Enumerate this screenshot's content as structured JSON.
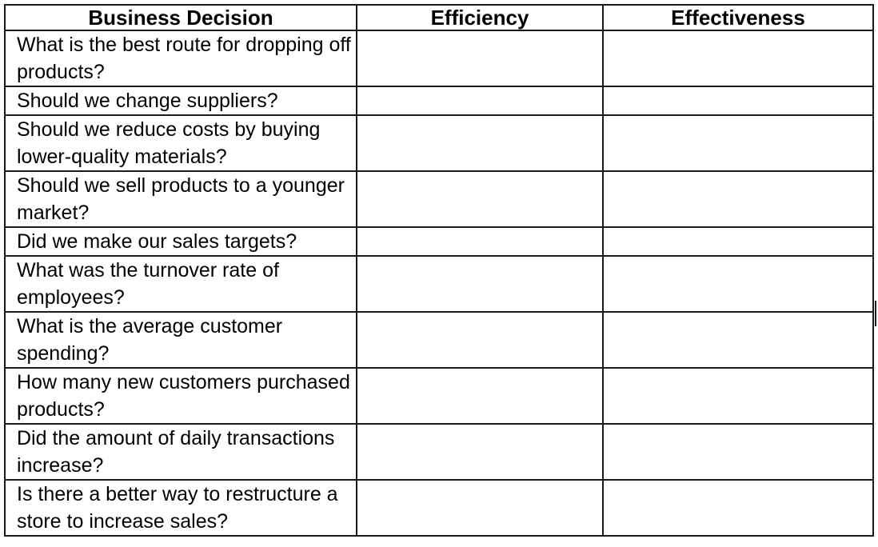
{
  "table": {
    "headers": {
      "decision": "Business Decision",
      "efficiency": "Efficiency",
      "effectiveness": "Effectiveness"
    },
    "rows": [
      {
        "decision": "What is the best route for dropping off products?",
        "efficiency": "",
        "effectiveness": ""
      },
      {
        "decision": "Should we change suppliers?",
        "efficiency": "",
        "effectiveness": ""
      },
      {
        "decision": "Should we reduce costs by buying lower-quality materials?",
        "efficiency": "",
        "effectiveness": ""
      },
      {
        "decision": "Should we sell products to a younger market?",
        "efficiency": "",
        "effectiveness": ""
      },
      {
        "decision": "Did we make our sales targets?",
        "efficiency": "",
        "effectiveness": ""
      },
      {
        "decision": "What was the turnover rate of employees?",
        "efficiency": "",
        "effectiveness": ""
      },
      {
        "decision": "What is the average customer spending?",
        "efficiency": "",
        "effectiveness": ""
      },
      {
        "decision": "How many new customers purchased products?",
        "efficiency": "",
        "effectiveness": ""
      },
      {
        "decision": "Did the amount of daily transactions increase?",
        "efficiency": "",
        "effectiveness": ""
      },
      {
        "decision": "Is there a better way to restructure a store to increase sales?",
        "efficiency": "",
        "effectiveness": ""
      }
    ]
  }
}
